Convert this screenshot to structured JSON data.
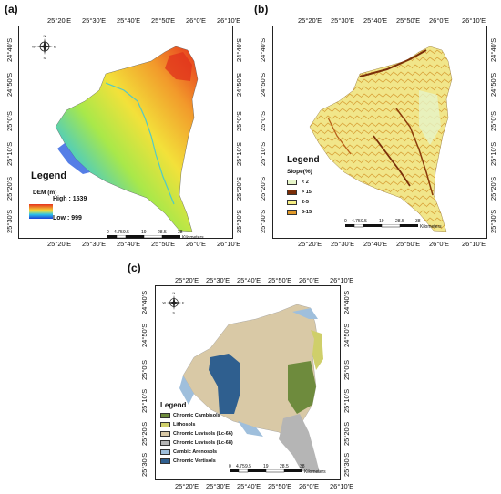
{
  "panels": [
    {
      "label": "(a)",
      "top_ticks": [
        "25°20'E",
        "25°30'E",
        "25°40'E",
        "25°50'E",
        "26°0'E",
        "26°10'E"
      ],
      "bottom_ticks": [
        "25°20'E",
        "25°30'E",
        "25°40'E",
        "25°50'E",
        "26°0'E",
        "26°10'E"
      ],
      "left_ticks": [
        "24°40'S",
        "24°50'S",
        "25°0'S",
        "25°10'S",
        "25°20'S",
        "25°30'S"
      ],
      "right_ticks": [
        "24°40'S",
        "24°50'S",
        "25°0'S",
        "25°10'S",
        "25°20'S",
        "25°30'S"
      ],
      "legend_title": "Legend",
      "legend_sub": "DEM (m)",
      "legend_high": "High : 1539",
      "legend_low": "Low : 999"
    },
    {
      "label": "(b)",
      "top_ticks": [
        "25°20'E",
        "25°30'E",
        "25°40'E",
        "25°50'E",
        "26°0'E",
        "26°10'E"
      ],
      "bottom_ticks": [
        "25°20'E",
        "25°30'E",
        "25°40'E",
        "25°50'E",
        "26°0'E",
        "26°10'E"
      ],
      "left_ticks": [
        "24°40'S",
        "24°50'S",
        "25°0'S",
        "25°10'S",
        "25°20'S",
        "25°30'S"
      ],
      "right_ticks": [
        "24°40'S",
        "24°50'S",
        "25°0'S",
        "25°10'S",
        "25°20'S",
        "25°30'S"
      ],
      "legend_title": "Legend",
      "legend_sub": "Slope(%)",
      "legend_items": [
        {
          "label": "< 2",
          "color": "#e6f4c8"
        },
        {
          "label": "> 15",
          "color": "#7a2e08"
        },
        {
          "label": "2-5",
          "color": "#f5ec82"
        },
        {
          "label": "5-15",
          "color": "#e19a2a"
        }
      ]
    },
    {
      "label": "(c)",
      "top_ticks": [
        "25°20'E",
        "25°30'E",
        "25°40'E",
        "25°50'E",
        "26°0'E",
        "26°10'E"
      ],
      "bottom_ticks": [
        "25°20'E",
        "25°30'E",
        "25°40'E",
        "25°50'E",
        "26°0'E",
        "26°10'E"
      ],
      "left_ticks": [
        "24°40'S",
        "24°50'S",
        "25°0'S",
        "25°10'S",
        "25°20'S",
        "25°30'S"
      ],
      "right_ticks": [
        "24°40'S",
        "24°50'S",
        "25°0'S",
        "25°10'S",
        "25°20'S",
        "25°30'S"
      ],
      "legend_title": "Legend",
      "legend_items": [
        {
          "label": "Chromic Cambisols",
          "color": "#6e8b3d"
        },
        {
          "label": "Lithosols",
          "color": "#cfcf6a"
        },
        {
          "label": "Chromic Luvisols (Lc-66)",
          "color": "#d9c9a6"
        },
        {
          "label": "Chromic Luvisols (Lc-68)",
          "color": "#b5b5b5"
        },
        {
          "label": "Cambic Arenosols",
          "color": "#9fbfdc"
        },
        {
          "label": "Chromic Vertisols",
          "color": "#2f5f8f"
        }
      ]
    }
  ],
  "scale_bar": {
    "labels": [
      "0",
      "4.75",
      "9.5",
      "19",
      "28.5",
      "38"
    ],
    "unit": "Kilometers"
  },
  "north_arrow": {
    "n": "N",
    "s": "S",
    "e": "E",
    "w": "W"
  },
  "colors": {
    "dem_high": "#e8321e",
    "dem_mid": "#f0e040",
    "dem_low": "#2030d0"
  }
}
